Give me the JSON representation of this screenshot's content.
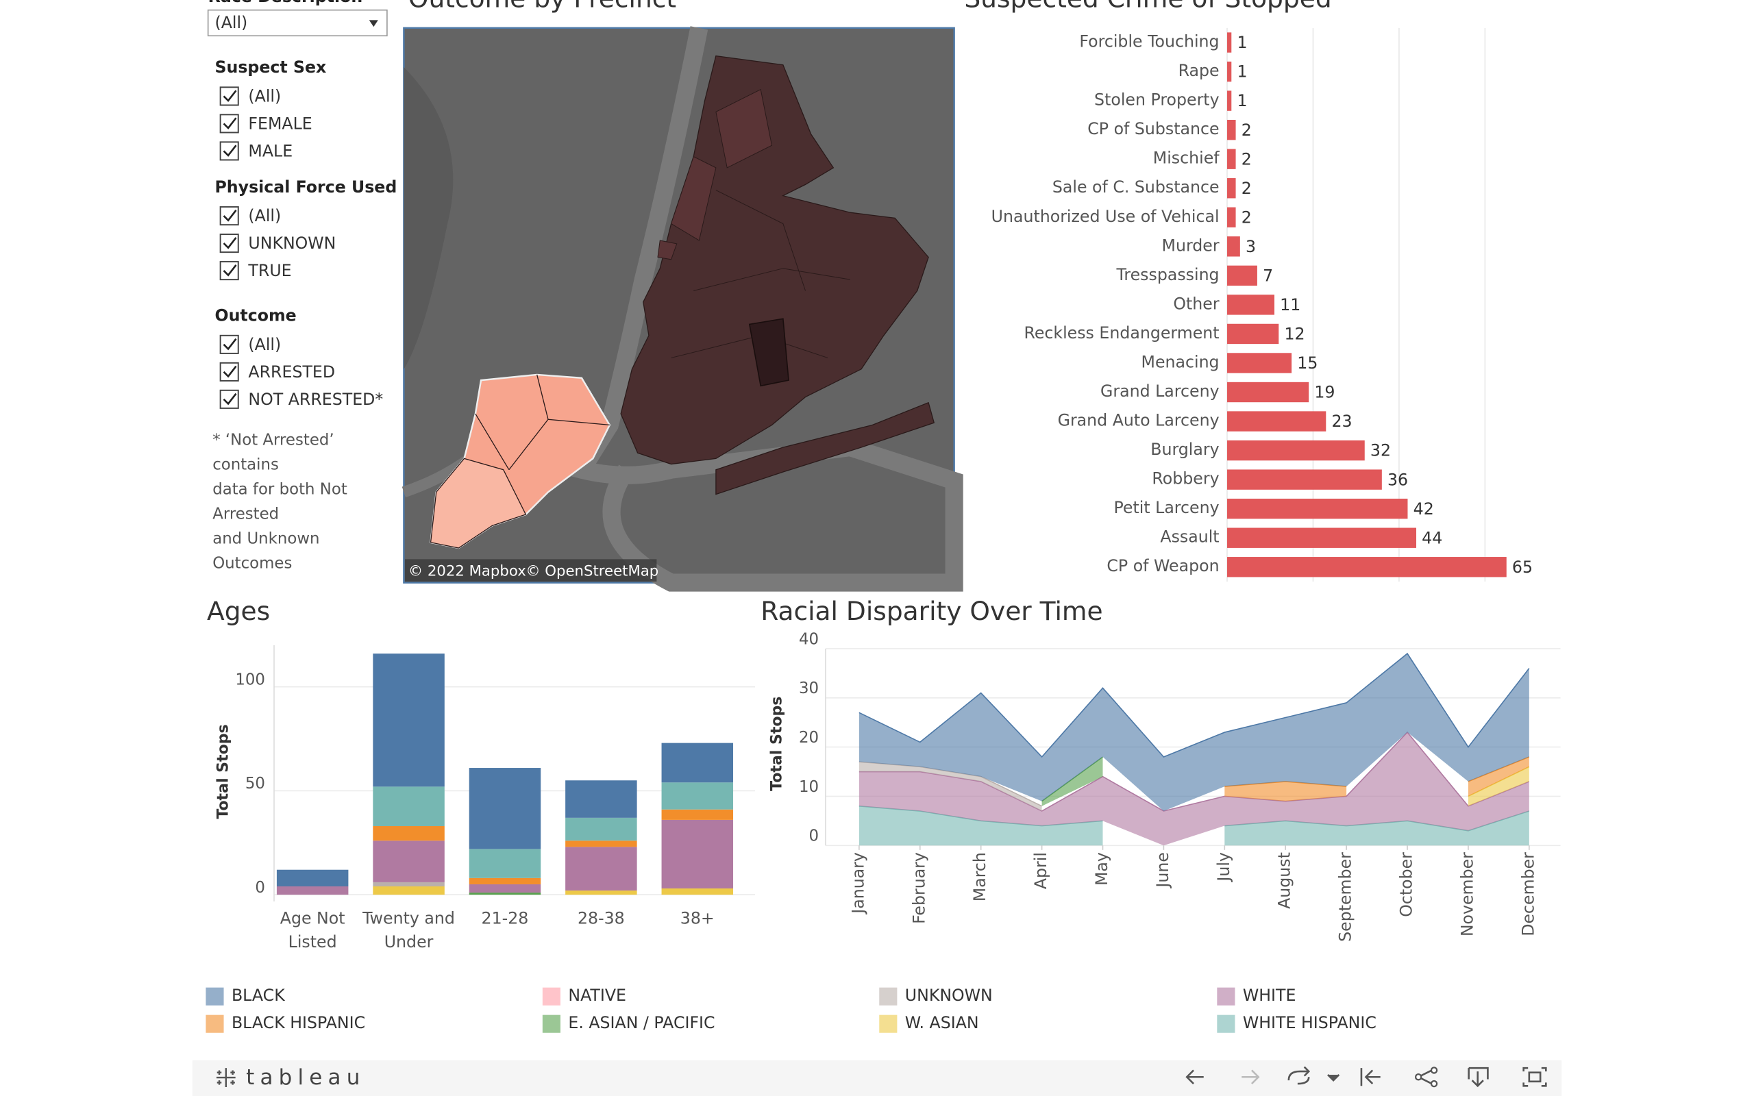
{
  "filters": {
    "race_label": "Race Description",
    "race_value": "(All)",
    "groups": [
      {
        "title": "Suspect Sex",
        "options": [
          "(All)",
          "FEMALE",
          "MALE"
        ]
      },
      {
        "title": "Physical Force Used",
        "options": [
          "(All)",
          "UNKNOWN",
          "TRUE"
        ]
      },
      {
        "title": "Outcome",
        "options": [
          "(All)",
          "ARRESTED",
          "NOT ARRESTED*"
        ]
      }
    ],
    "note": [
      "* ‘Not Arrested’",
      "contains",
      "data for both Not",
      "Arrested",
      "and Unknown",
      "Outcomes"
    ]
  },
  "map": {
    "title": "Outcome by Precinct",
    "attribution": [
      "© 2022 Mapbox",
      "© OpenStreetMap"
    ]
  },
  "chart_data": [
    {
      "type": "hbar",
      "title": "Suspected Crime of Stopped",
      "categories": [
        "Forcible Touching",
        "Rape",
        "Stolen Property",
        "CP of Substance",
        "Mischief",
        "Sale of C. Substance",
        "Unauthorized Use of Vehical",
        "Murder",
        "Tresspassing",
        "Other",
        "Reckless Endangerment",
        "Menacing",
        "Grand Larceny",
        "Grand Auto Larceny",
        "Burglary",
        "Robbery",
        "Petit Larceny",
        "Assault",
        "CP of Weapon"
      ],
      "values": [
        1,
        1,
        1,
        2,
        2,
        2,
        2,
        3,
        7,
        11,
        12,
        15,
        19,
        23,
        32,
        36,
        42,
        44,
        65
      ],
      "color": "#e15759",
      "xlim": [
        0,
        76
      ],
      "xticks": [
        0,
        20,
        40,
        60
      ],
      "grid": true
    },
    {
      "type": "stacked_bar",
      "title": "Ages",
      "ylabel": "Total Stops",
      "categories": [
        "Age Not Listed",
        "Twenty and Under",
        "21-28",
        "28-38",
        "38+"
      ],
      "ylim": [
        0,
        120
      ],
      "yticks": [
        0,
        50,
        100
      ],
      "grid": true,
      "series": [
        {
          "name": "W. ASIAN",
          "color": "#edc948",
          "values": [
            0,
            4,
            0,
            2,
            3
          ]
        },
        {
          "name": "UNKNOWN",
          "color": "#bab0ac",
          "values": [
            0,
            2,
            0,
            0,
            0
          ]
        },
        {
          "name": "E. ASIAN / PACIFIC",
          "color": "#59a14f",
          "values": [
            0,
            0,
            1,
            0,
            0
          ]
        },
        {
          "name": "WHITE",
          "color": "#b07aa1",
          "values": [
            4,
            20,
            4,
            21,
            33
          ]
        },
        {
          "name": "BLACK HISPANIC",
          "color": "#f28e2b",
          "values": [
            0,
            7,
            3,
            3,
            5
          ]
        },
        {
          "name": "WHITE HISPANIC",
          "color": "#76b7b2",
          "values": [
            0,
            19,
            14,
            11,
            13
          ]
        },
        {
          "name": "BLACK",
          "color": "#4e79a7",
          "values": [
            8,
            64,
            39,
            18,
            19
          ]
        }
      ]
    },
    {
      "type": "stacked_area",
      "title": "Racial Disparity Over Time",
      "ylabel": "Total Stops",
      "categories": [
        "January",
        "February",
        "March",
        "April",
        "May",
        "June",
        "July",
        "August",
        "September",
        "October",
        "November",
        "December"
      ],
      "ylim": [
        0,
        40
      ],
      "yticks": [
        0,
        10,
        20,
        30,
        40
      ],
      "grid": true,
      "series": [
        {
          "name": "WHITE HISPANIC",
          "color": "#76b7b2",
          "values": [
            8,
            7,
            5,
            4,
            5,
            null,
            4,
            5,
            4,
            5,
            3,
            7
          ]
        },
        {
          "name": "WHITE",
          "color": "#b07aa1",
          "values": [
            7,
            8,
            8,
            3,
            9,
            7,
            6,
            4,
            6,
            18,
            5,
            6
          ]
        },
        {
          "name": "UNKNOWN",
          "color": "#bab0ac",
          "values": [
            2,
            1,
            1,
            1,
            null,
            null,
            null,
            null,
            null,
            null,
            null,
            null
          ]
        },
        {
          "name": "E. ASIAN / PACIFIC",
          "color": "#59a14f",
          "values": [
            null,
            null,
            null,
            1,
            4,
            null,
            null,
            null,
            null,
            null,
            null,
            null
          ]
        },
        {
          "name": "W. ASIAN",
          "color": "#edc948",
          "values": [
            null,
            null,
            null,
            null,
            null,
            null,
            null,
            null,
            null,
            null,
            2,
            3
          ]
        },
        {
          "name": "BLACK HISPANIC",
          "color": "#f28e2b",
          "values": [
            null,
            null,
            null,
            null,
            null,
            null,
            2,
            4,
            2,
            null,
            3,
            2
          ]
        },
        {
          "name": "BLACK",
          "color": "#4e79a7",
          "values": [
            10,
            5,
            17,
            9,
            14,
            11,
            11,
            13,
            17,
            16,
            7,
            18
          ]
        }
      ]
    }
  ],
  "legend": [
    {
      "name": "BLACK",
      "color": "#4e79a7"
    },
    {
      "name": "NATIVE",
      "color": "#ff9da7"
    },
    {
      "name": "UNKNOWN",
      "color": "#bab0ac"
    },
    {
      "name": "WHITE",
      "color": "#b07aa1"
    },
    {
      "name": "BLACK HISPANIC",
      "color": "#f28e2b"
    },
    {
      "name": "E. ASIAN / PACIFIC",
      "color": "#59a14f"
    },
    {
      "name": "W. ASIAN",
      "color": "#edc948"
    },
    {
      "name": "WHITE HISPANIC",
      "color": "#76b7b2"
    }
  ],
  "toolbar": {
    "logo": "tableau"
  }
}
